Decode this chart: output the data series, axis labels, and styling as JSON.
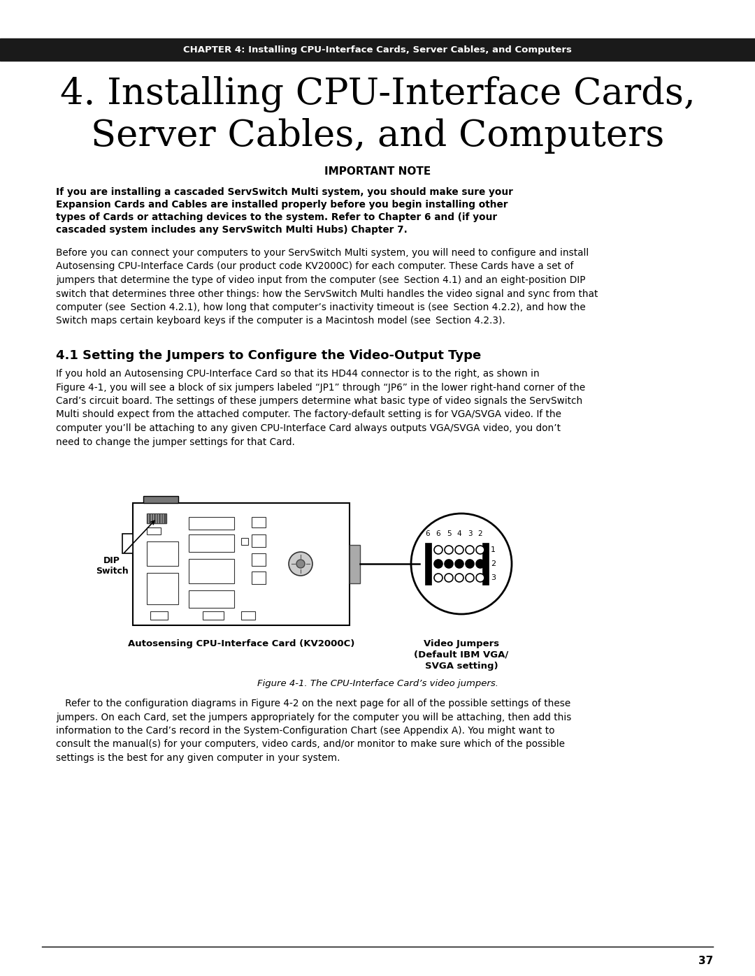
{
  "page_bg": "#ffffff",
  "header_bg": "#1a1a1a",
  "header_text": "CHAPTER 4: Installing CPU-Interface Cards, Server Cables, and Computers",
  "chapter_title_line1": "4. Installing CPU-Interface Cards,",
  "chapter_title_line2": "Server Cables, and Computers",
  "important_note_title": "IMPORTANT NOTE",
  "note_line1": "If you are installing a cascaded ServSwitch Multi system, you should make sure your",
  "note_line2": "Expansion Cards and Cables are installed properly before you begin installing other",
  "note_line3": "types of Cards or attaching devices to the system. Refer to",
  "note_line3_normal": " Chapter 6 ",
  "note_line3_bold": "and (if your",
  "note_line4_bold": "cascaded system includes any ServSwitch Multi Hubs)",
  "note_line4_normal": " Chapter 7.",
  "body1": "Before you can connect your computers to your ServSwitch Multi system, you will need to configure and install\nAutosensing CPU-Interface Cards (our product code KV2000C) for each computer. These Cards have a set of\njumpers that determine the type of video input from the computer (see ",
  "body1_b1": "Section 4.1",
  "body1_m1": ") and an eight-position DIP\nswitch that determines three other things: how the ServSwitch Multi handles the video signal and sync from that\ncomputer (see ",
  "body1_b2": "Section 4.2.1",
  "body1_m2": "), how long that computer’s inactivity timeout is (see ",
  "body1_b3": "Section 4.2.2",
  "body1_m3": "), and how the\nSwitch maps certain keyboard keys if the computer is a Macintosh model (see ",
  "body1_b4": "Section 4.2.3",
  "body1_e": ").",
  "section_title": "4.1 Setting the Jumpers to Configure the Video-Output Type",
  "section_body": "If you hold an Autosensing CPU-Interface Card so that its HD44 connector is to the right, as shown in\nFigure 4-1, you will see a block of six jumpers labeled “JP1” through “JP6” in the lower right-hand corner of the\nCard’s circuit board. The settings of these jumpers determine what basic type of video signals the ServSwitch\nMulti should expect from the attached computer. The factory-default setting is for VGA/SVGA video. If the\ncomputer you’ll be attaching to any given CPU-Interface Card always outputs VGA/SVGA video, you don’t\nneed to change the jumper settings for that Card.",
  "caption_left": "Autosensing CPU-Interface Card (KV2000C)",
  "caption_right_line1": "Video Jumpers",
  "caption_right_line2": "(Default IBM VGA/",
  "caption_right_line3": "SVGA setting)",
  "figure_caption": "Figure 4-1. The CPU-Interface Card’s video jumpers.",
  "body2_start": "   Refer to the configuration diagrams in Figure 4-2 on the next page for all of the possible settings of these\njumpers. On each Card, set the jumpers appropriately for the computer you will be attaching, then add this\ninformation to the Card’s record in the System-Configuration Chart (see ",
  "body2_bold": "Appendix A",
  "body2_end": "). You might want to\nconsult the manual(s) for your computers, video cards, and/or monitor to make sure which of the possible\nsettings is the best for any given computer in your system.",
  "page_number": "37",
  "dip_label": "DIP\nSwitch"
}
